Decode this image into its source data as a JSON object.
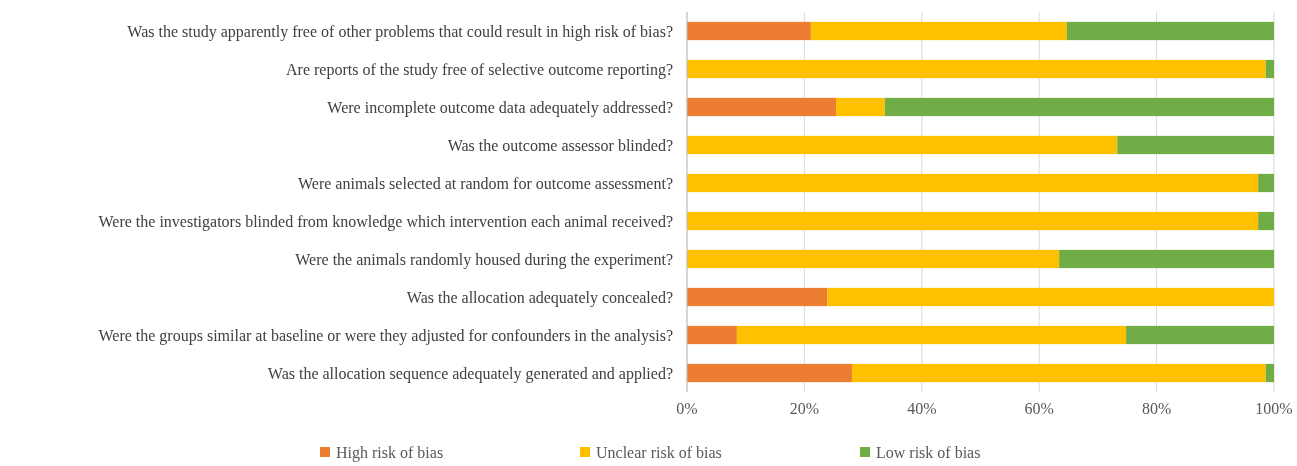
{
  "chart_data": {
    "type": "bar",
    "orientation": "horizontal",
    "stacked": true,
    "categories": [
      "Was the study apparently free of other problems that could result in high risk of bias?",
      "Are reports of the study free of selective outcome reporting?",
      "Were incomplete outcome data adequately addressed?",
      "Was the outcome assessor blinded?",
      "Were animals selected at random for outcome assessment?",
      "Were the investigators blinded from knowledge which intervention each animal received?",
      "Were the animals randomly housed during the experiment?",
      "Was the allocation adequately concealed?",
      "Were the groups similar at baseline or were they adjusted for confounders in the analysis?",
      "Was the allocation sequence adequately generated and applied?"
    ],
    "series": [
      {
        "name": "High risk of bias",
        "color": "#ed7d31",
        "values": [
          21.1,
          0,
          25.4,
          0,
          0,
          0,
          0,
          23.9,
          8.5,
          28.1
        ]
      },
      {
        "name": "Unclear risk of bias",
        "color": "#ffc000",
        "values": [
          43.6,
          98.6,
          8.3,
          73.3,
          97.3,
          97.3,
          63.4,
          76.1,
          66.3,
          70.5
        ]
      },
      {
        "name": "Low risk of bias",
        "color": "#70ad47",
        "values": [
          35.3,
          1.4,
          66.3,
          26.7,
          2.7,
          2.7,
          36.6,
          0,
          25.2,
          1.4
        ]
      }
    ],
    "xlim": [
      0,
      100
    ],
    "xticks": [
      {
        "value": 0,
        "label": "0%"
      },
      {
        "value": 20,
        "label": "20%"
      },
      {
        "value": 40,
        "label": "40%"
      },
      {
        "value": 60,
        "label": "60%"
      },
      {
        "value": 80,
        "label": "80%"
      },
      {
        "value": 100,
        "label": "100%"
      }
    ],
    "grid": "x",
    "legend": "bottom"
  }
}
